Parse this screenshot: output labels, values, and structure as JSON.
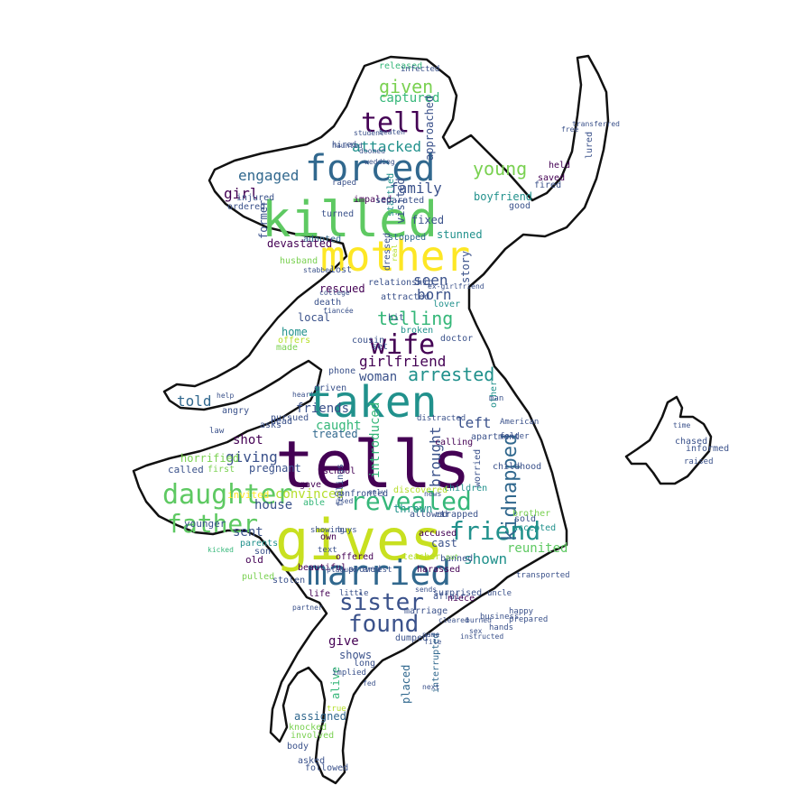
{
  "word_cloud": {
    "shape": "girl silhouette with rabbit",
    "palette": [
      "#440154",
      "#3b528b",
      "#21918c",
      "#5ec962",
      "#fde725",
      "#b5de2b",
      "#31688e",
      "#35b779"
    ],
    "words": [
      {
        "text": "tells",
        "color": "#440154"
      },
      {
        "text": "taken",
        "color": "#21918c"
      },
      {
        "text": "gives",
        "color": "#c8e020"
      },
      {
        "text": "killed",
        "color": "#5ec962"
      },
      {
        "text": "mother",
        "color": "#fde725"
      },
      {
        "text": "married",
        "color": "#31688e"
      },
      {
        "text": "forced",
        "color": "#31688e"
      },
      {
        "text": "daughter",
        "color": "#5ec962"
      },
      {
        "text": "revealed",
        "color": "#35b779"
      },
      {
        "text": "friend",
        "color": "#21918c"
      },
      {
        "text": "father",
        "color": "#5ec962"
      },
      {
        "text": "wife",
        "color": "#440154"
      },
      {
        "text": "sister",
        "color": "#3b528b"
      },
      {
        "text": "found",
        "color": "#3b528b"
      },
      {
        "text": "tell",
        "color": "#440154"
      },
      {
        "text": "telling",
        "color": "#35b779"
      },
      {
        "text": "girlfriend",
        "color": "#440154"
      },
      {
        "text": "arrested",
        "color": "#21918c"
      },
      {
        "text": "kidnapped",
        "color": "#31688e"
      },
      {
        "text": "young",
        "color": "#7ad151"
      },
      {
        "text": "given",
        "color": "#7ad151"
      },
      {
        "text": "attacked",
        "color": "#21918c"
      },
      {
        "text": "engaged",
        "color": "#31688e"
      },
      {
        "text": "family",
        "color": "#3b528b"
      },
      {
        "text": "girl",
        "color": "#440154"
      },
      {
        "text": "seen",
        "color": "#3b528b"
      },
      {
        "text": "born",
        "color": "#3b528b"
      },
      {
        "text": "shown",
        "color": "#21918c"
      },
      {
        "text": "reunited",
        "color": "#5ec962"
      },
      {
        "text": "convinced",
        "color": "#b5de2b"
      },
      {
        "text": "giving",
        "color": "#3b528b"
      },
      {
        "text": "told",
        "color": "#31688e"
      },
      {
        "text": "caught",
        "color": "#35b779"
      },
      {
        "text": "left",
        "color": "#3b528b"
      },
      {
        "text": "house",
        "color": "#3b528b"
      },
      {
        "text": "sent",
        "color": "#3b528b"
      },
      {
        "text": "give",
        "color": "#440154"
      },
      {
        "text": "shot",
        "color": "#440154"
      },
      {
        "text": "captured",
        "color": "#35b779"
      },
      {
        "text": "brought",
        "color": "#3b528b"
      },
      {
        "text": "introduced",
        "color": "#35b779"
      },
      {
        "text": "woman",
        "color": "#3b528b"
      },
      {
        "text": "friends",
        "color": "#3b528b"
      },
      {
        "text": "treated",
        "color": "#31688e"
      },
      {
        "text": "released",
        "color": "#35b779"
      },
      {
        "text": "boyfriend",
        "color": "#21918c"
      },
      {
        "text": "injured",
        "color": "#3b528b"
      },
      {
        "text": "former",
        "color": "#3b528b"
      },
      {
        "text": "visited",
        "color": "#3b528b"
      },
      {
        "text": "adopted",
        "color": "#31688e"
      },
      {
        "text": "devastated",
        "color": "#440154"
      },
      {
        "text": "husband",
        "color": "#7ad151"
      },
      {
        "text": "lost",
        "color": "#3b528b"
      },
      {
        "text": "relationship",
        "color": "#3b528b"
      },
      {
        "text": "rescued",
        "color": "#440154"
      },
      {
        "text": "death",
        "color": "#3b528b"
      },
      {
        "text": "local",
        "color": "#3b528b"
      },
      {
        "text": "home",
        "color": "#21918c"
      },
      {
        "text": "offers",
        "color": "#b5de2b"
      },
      {
        "text": "made",
        "color": "#7ad151"
      },
      {
        "text": "dead",
        "color": "#3b528b"
      },
      {
        "text": "pursued",
        "color": "#3b528b"
      },
      {
        "text": "called",
        "color": "#3b528b"
      },
      {
        "text": "horrified",
        "color": "#7ad151"
      },
      {
        "text": "pregnant",
        "color": "#3b528b"
      },
      {
        "text": "invited",
        "color": "#fde725"
      },
      {
        "text": "younger",
        "color": "#3b528b"
      },
      {
        "text": "parents",
        "color": "#21918c"
      },
      {
        "text": "son",
        "color": "#3b528b"
      },
      {
        "text": "old",
        "color": "#440154"
      },
      {
        "text": "pulled",
        "color": "#7ad151"
      },
      {
        "text": "stolen",
        "color": "#3b528b"
      },
      {
        "text": "beautiful",
        "color": "#440154"
      },
      {
        "text": "gave",
        "color": "#440154"
      },
      {
        "text": "able",
        "color": "#35b779"
      },
      {
        "text": "own",
        "color": "#440154"
      },
      {
        "text": "offered",
        "color": "#440154"
      },
      {
        "text": "life",
        "color": "#440154"
      },
      {
        "text": "shows",
        "color": "#3b528b"
      },
      {
        "text": "placed",
        "color": "#31688e"
      },
      {
        "text": "interrupted",
        "color": "#31688e"
      },
      {
        "text": "alive",
        "color": "#35b779"
      },
      {
        "text": "assigned",
        "color": "#31688e"
      },
      {
        "text": "knocked",
        "color": "#7ad151"
      },
      {
        "text": "involved",
        "color": "#7ad151"
      },
      {
        "text": "body",
        "color": "#3b528b"
      },
      {
        "text": "asked",
        "color": "#3b528b"
      },
      {
        "text": "followed",
        "color": "#3b528b"
      },
      {
        "text": "proved",
        "color": "#3b528b"
      },
      {
        "text": "cast",
        "color": "#3b528b"
      },
      {
        "text": "banned",
        "color": "#3b528b"
      },
      {
        "text": "surprised",
        "color": "#3b528b"
      },
      {
        "text": "affair",
        "color": "#3b528b"
      },
      {
        "text": "marriage",
        "color": "#3b528b"
      },
      {
        "text": "dumped",
        "color": "#3b528b"
      },
      {
        "text": "allowed",
        "color": "#3b528b"
      },
      {
        "text": "trapped",
        "color": "#3b528b"
      },
      {
        "text": "thrown",
        "color": "#21918c"
      },
      {
        "text": "children",
        "color": "#21918c"
      },
      {
        "text": "discovered",
        "color": "#b5de2b"
      },
      {
        "text": "feelings",
        "color": "#3b528b"
      },
      {
        "text": "confronted",
        "color": "#3b528b"
      },
      {
        "text": "school",
        "color": "#440154"
      },
      {
        "text": "accused",
        "color": "#440154"
      },
      {
        "text": "calling",
        "color": "#440154"
      },
      {
        "text": "distracted",
        "color": "#3b528b"
      },
      {
        "text": "apartment",
        "color": "#3b528b"
      },
      {
        "text": "worried",
        "color": "#3b528b"
      },
      {
        "text": "childhood",
        "color": "#3b528b"
      },
      {
        "text": "car",
        "color": "#3b528b"
      },
      {
        "text": "sold",
        "color": "#3b528b"
      },
      {
        "text": "brother",
        "color": "#7ad151"
      },
      {
        "text": "accepted",
        "color": "#21918c"
      },
      {
        "text": "other",
        "color": "#21918c"
      },
      {
        "text": "informed",
        "color": "#3b528b"
      },
      {
        "text": "raised",
        "color": "#3b528b"
      },
      {
        "text": "chased",
        "color": "#3b528b"
      },
      {
        "text": "saved",
        "color": "#440154"
      },
      {
        "text": "held",
        "color": "#440154"
      },
      {
        "text": "fired",
        "color": "#3b528b"
      },
      {
        "text": "fixed",
        "color": "#3b528b"
      },
      {
        "text": "story",
        "color": "#3b528b"
      },
      {
        "text": "stunned",
        "color": "#21918c"
      },
      {
        "text": "stopped",
        "color": "#31688e"
      },
      {
        "text": "startled",
        "color": "#21918c"
      },
      {
        "text": "impaled",
        "color": "#440154"
      },
      {
        "text": "separated",
        "color": "#3b528b"
      },
      {
        "text": "turned",
        "color": "#3b528b"
      },
      {
        "text": "ordered",
        "color": "#3b528b"
      },
      {
        "text": "raped",
        "color": "#3b528b"
      },
      {
        "text": "dressed",
        "color": "#3b528b"
      },
      {
        "text": "approached",
        "color": "#3b528b"
      },
      {
        "text": "attracted",
        "color": "#3b528b"
      },
      {
        "text": "broken",
        "color": "#21918c"
      },
      {
        "text": "lover",
        "color": "#21918c"
      },
      {
        "text": "hit",
        "color": "#3b528b"
      },
      {
        "text": "cousin",
        "color": "#3b528b"
      },
      {
        "text": "doctor",
        "color": "#3b528b"
      },
      {
        "text": "set",
        "color": "#3b528b"
      },
      {
        "text": "phone",
        "color": "#3b528b"
      },
      {
        "text": "driven",
        "color": "#3b528b"
      },
      {
        "text": "help",
        "color": "#3b528b"
      },
      {
        "text": "angry",
        "color": "#3b528b"
      },
      {
        "text": "asks",
        "color": "#3b528b"
      },
      {
        "text": "first",
        "color": "#7ad151"
      },
      {
        "text": "stabbed",
        "color": "#3b528b"
      },
      {
        "text": "college",
        "color": "#3b528b"
      },
      {
        "text": "fiancée",
        "color": "#3b528b"
      },
      {
        "text": "infected",
        "color": "#3b528b"
      },
      {
        "text": "student",
        "color": "#3b528b"
      },
      {
        "text": "beaten",
        "color": "#3b528b"
      },
      {
        "text": "hired",
        "color": "#3b528b"
      },
      {
        "text": "good",
        "color": "#3b528b"
      },
      {
        "text": "teacher",
        "color": "#b5de2b"
      },
      {
        "text": "harassed",
        "color": "#440154"
      },
      {
        "text": "niece",
        "color": "#440154"
      },
      {
        "text": "haunted",
        "color": "#3b528b"
      },
      {
        "text": "real",
        "color": "#b5de2b"
      },
      {
        "text": "doomed",
        "color": "#3b528b"
      },
      {
        "text": "partner",
        "color": "#3b528b"
      },
      {
        "text": "wedding",
        "color": "#3b528b"
      },
      {
        "text": "ex-girlfriend",
        "color": "#3b528b"
      },
      {
        "text": "transported",
        "color": "#3b528b"
      },
      {
        "text": "uncle",
        "color": "#3b528b"
      },
      {
        "text": "happy",
        "color": "#3b528b"
      },
      {
        "text": "business",
        "color": "#3b528b"
      },
      {
        "text": "prepared",
        "color": "#3b528b"
      },
      {
        "text": "hands",
        "color": "#3b528b"
      },
      {
        "text": "kicked",
        "color": "#35b779"
      },
      {
        "text": "buys",
        "color": "#3b528b"
      },
      {
        "text": "little",
        "color": "#3b528b"
      },
      {
        "text": "put",
        "color": "#7ad151"
      },
      {
        "text": "lured",
        "color": "#3b528b"
      },
      {
        "text": "transferred",
        "color": "#3b528b"
      },
      {
        "text": "free",
        "color": "#3b528b"
      },
      {
        "text": "time",
        "color": "#3b528b"
      },
      {
        "text": "man",
        "color": "#3b528b"
      },
      {
        "text": "American",
        "color": "#3b528b"
      },
      {
        "text": "folder",
        "color": "#3b528b"
      },
      {
        "text": "implied",
        "color": "#3b528b"
      },
      {
        "text": "long",
        "color": "#3b528b"
      },
      {
        "text": "true",
        "color": "#b5de2b"
      },
      {
        "text": "only",
        "color": "#3b528b"
      },
      {
        "text": "news",
        "color": "#3b528b"
      },
      {
        "text": "fed",
        "color": "#3b528b"
      },
      {
        "text": "next",
        "color": "#3b528b"
      },
      {
        "text": "text",
        "color": "#3b528b"
      },
      {
        "text": "plagued",
        "color": "#3b528b"
      },
      {
        "text": "arrest",
        "color": "#3b528b"
      },
      {
        "text": "sends",
        "color": "#3b528b"
      },
      {
        "text": "cleared",
        "color": "#3b528b"
      },
      {
        "text": "burned",
        "color": "#3b528b"
      },
      {
        "text": "sex",
        "color": "#3b528b"
      },
      {
        "text": "name",
        "color": "#3b528b"
      },
      {
        "text": "instructed",
        "color": "#3b528b"
      },
      {
        "text": "file",
        "color": "#3b528b"
      },
      {
        "text": "showing",
        "color": "#3b528b"
      },
      {
        "text": "used",
        "color": "#3b528b"
      },
      {
        "text": "law",
        "color": "#3b528b"
      },
      {
        "text": "heart",
        "color": "#3b528b"
      }
    ]
  }
}
